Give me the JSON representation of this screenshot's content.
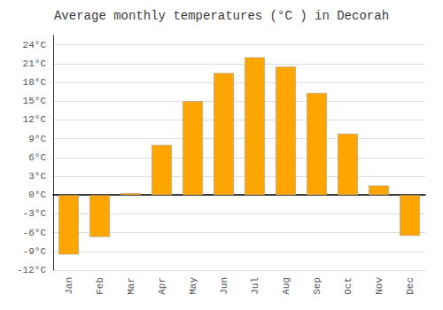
{
  "chart_data": {
    "type": "bar",
    "title": "Average monthly temperatures (°C ) in Decorah",
    "categories": [
      "Jan",
      "Feb",
      "Mar",
      "Apr",
      "May",
      "Jun",
      "Jul",
      "Aug",
      "Sep",
      "Oct",
      "Nov",
      "Dec"
    ],
    "values": [
      -9.5,
      -6.7,
      0.3,
      8.0,
      15.0,
      19.5,
      22.0,
      20.5,
      16.3,
      9.8,
      1.5,
      -6.5
    ],
    "color": "#FFA500",
    "ylim": [
      -12,
      25.5
    ],
    "yticks": [
      {
        "value": -12,
        "label": "-12°C"
      },
      {
        "value": -9,
        "label": "-9°C"
      },
      {
        "value": -6,
        "label": "-6°C"
      },
      {
        "value": -3,
        "label": "-3°C"
      },
      {
        "value": 0,
        "label": "0°C"
      },
      {
        "value": 3,
        "label": "3°C"
      },
      {
        "value": 6,
        "label": "6°C"
      },
      {
        "value": 9,
        "label": "9°C"
      },
      {
        "value": 12,
        "label": "12°C"
      },
      {
        "value": 15,
        "label": "15°C"
      },
      {
        "value": 18,
        "label": "18°C"
      },
      {
        "value": 21,
        "label": "21°C"
      },
      {
        "value": 24,
        "label": "24°C"
      }
    ],
    "grid": true
  }
}
